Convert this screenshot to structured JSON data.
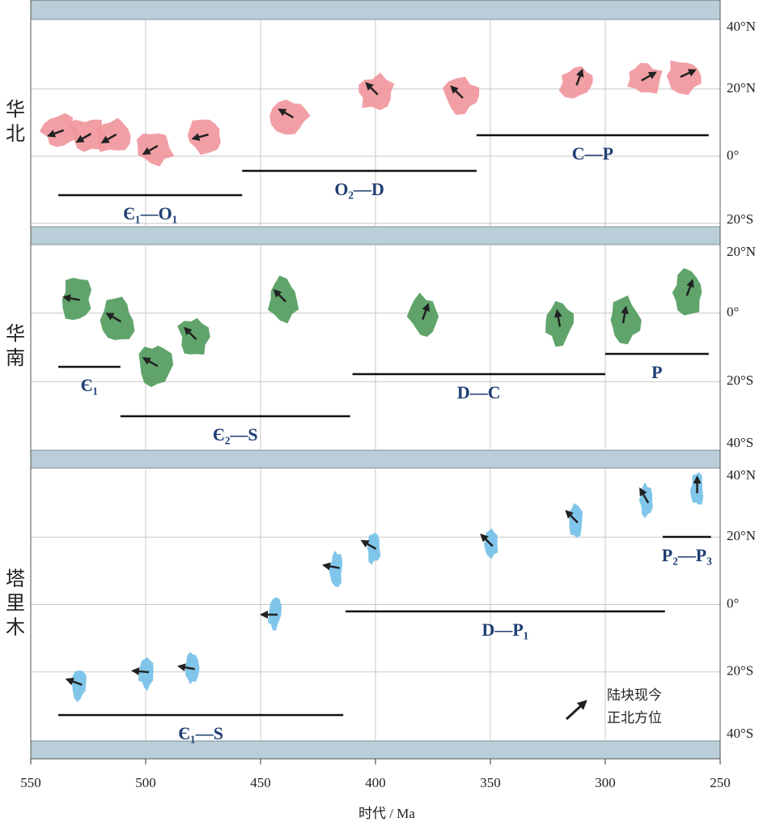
{
  "chart_data": [
    {
      "type": "scatter",
      "title": "华北",
      "color": "#f0959b",
      "x": [
        537,
        525,
        514,
        496,
        474,
        437,
        400,
        363,
        312,
        283,
        266
      ],
      "y": [
        7.4,
        6.2,
        6,
        2.6,
        6.2,
        12,
        19,
        18,
        22,
        23,
        24
      ],
      "arrow_angles": [
        250,
        240,
        240,
        240,
        255,
        300,
        315,
        315,
        20,
        60,
        65
      ],
      "ylim": [
        -21,
        40.7
      ],
      "yticks": [
        {
          "value": 40,
          "label": "40°N"
        },
        {
          "value": 20,
          "label": "20°N"
        },
        {
          "value": 0,
          "label": "0°"
        },
        {
          "value": -20,
          "label": "20°S"
        }
      ],
      "grid": true,
      "periods": [
        {
          "label": "Є₁—O₁",
          "range": [
            538,
            458
          ]
        },
        {
          "label": "O₂—D",
          "range": [
            458,
            356
          ]
        },
        {
          "label": "C—P",
          "range": [
            356,
            255
          ]
        }
      ]
    },
    {
      "type": "scatter",
      "title": "华南",
      "color": "#4f9a5c",
      "x": [
        530,
        512,
        496,
        479,
        440,
        379,
        320,
        292,
        264
      ],
      "y": [
        4,
        -2,
        -15,
        -7,
        4,
        -1,
        -3,
        -2,
        6
      ],
      "arrow_angles": [
        280,
        300,
        300,
        315,
        315,
        20,
        350,
        10,
        20
      ],
      "ylim": [
        -40,
        20
      ],
      "yticks": [
        {
          "value": 20,
          "label": "20°N"
        },
        {
          "value": 0,
          "label": "0°"
        },
        {
          "value": -20,
          "label": "20°S"
        },
        {
          "value": -40,
          "label": "40°S"
        }
      ],
      "grid": true,
      "periods": [
        {
          "label": "Є₁",
          "range": [
            538,
            511
          ]
        },
        {
          "label": "Є₂—S",
          "range": [
            511,
            411
          ]
        },
        {
          "label": "D—C",
          "range": [
            410,
            300
          ]
        },
        {
          "label": "P",
          "range": [
            300,
            255
          ]
        }
      ]
    },
    {
      "type": "scatter",
      "title": "塔里木",
      "color": "#72c0e8",
      "x": [
        529,
        500,
        480,
        444,
        417,
        401,
        350,
        313,
        282,
        260
      ],
      "y": [
        -23.5,
        -20,
        -19,
        -3,
        11,
        17,
        18,
        25,
        31,
        34
      ],
      "arrow_angles": [
        290,
        275,
        280,
        270,
        280,
        300,
        315,
        315,
        330,
        0
      ],
      "ylim": [
        -40.5,
        40.5
      ],
      "yticks": [
        {
          "value": 40,
          "label": "40°N"
        },
        {
          "value": 20,
          "label": "20°N"
        },
        {
          "value": 0,
          "label": "0°"
        },
        {
          "value": -20,
          "label": "20°S"
        },
        {
          "value": -40,
          "label": "40°S"
        }
      ],
      "grid": true,
      "periods": [
        {
          "label": "Є₁—S",
          "range": [
            538,
            414
          ]
        },
        {
          "label": "D—P₁",
          "range": [
            413,
            274
          ]
        },
        {
          "label": "P₂—P₃",
          "range": [
            275,
            254
          ]
        }
      ],
      "xlabel": "时代 / Ma",
      "xlim": [
        550,
        250
      ],
      "xticks": [
        550,
        500,
        450,
        400,
        350,
        300,
        250
      ],
      "legend": [
        "陆块现今",
        "正北方位"
      ]
    }
  ]
}
